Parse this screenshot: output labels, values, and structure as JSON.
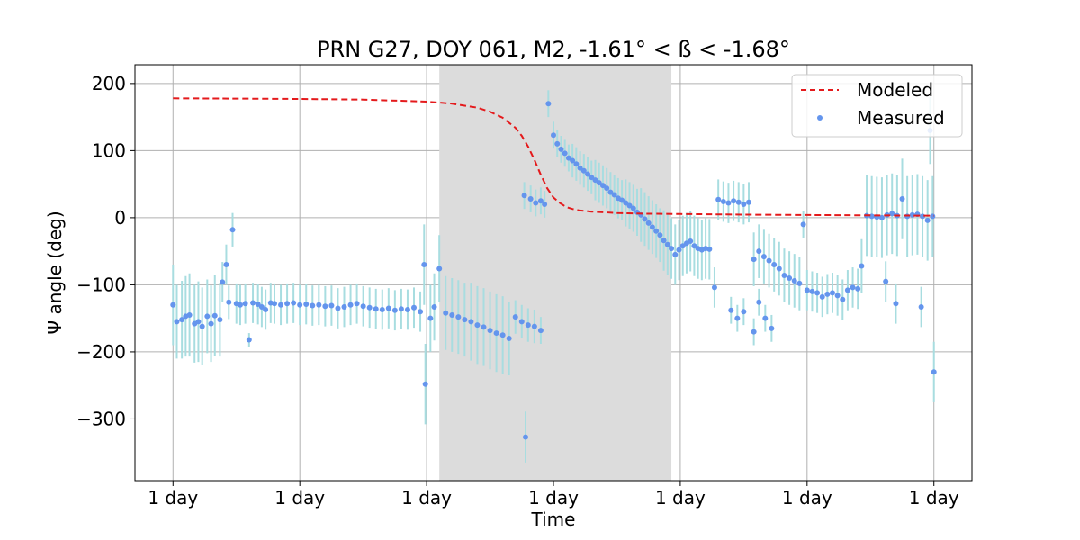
{
  "chart_data": {
    "type": "scatter",
    "title": "PRN G27, DOY 061, M2, -1.61° < ß < -1.68°",
    "xlabel": "Time",
    "ylabel": "Ψ angle (deg)",
    "x_tick_labels": [
      "1 day",
      "1 day",
      "1 day",
      "1 day",
      "1 day",
      "1 day",
      "1 day"
    ],
    "x_ticks": [
      0,
      1,
      2,
      3,
      4,
      5,
      6
    ],
    "xlim": [
      -0.3,
      6.3
    ],
    "y_ticks": [
      200,
      100,
      0,
      -100,
      -200,
      -300
    ],
    "y_tick_labels": [
      "200",
      "100",
      "0",
      "−100",
      "−200",
      "−300"
    ],
    "ylim": [
      -392,
      228
    ],
    "grid": true,
    "legend_position": "top-right",
    "shaded_region": [
      2.1,
      3.93
    ],
    "colors": {
      "modeled": "#e41a1c",
      "measured": "#6495ed",
      "error_bars": "#a8dde0",
      "shade": "#dcdcdc",
      "grid": "#b0b0b0"
    },
    "series": [
      {
        "name": "Modeled",
        "kind": "line",
        "style": "dashed",
        "x": [
          0.0,
          0.5,
          1.0,
          1.5,
          2.0,
          2.2,
          2.4,
          2.5,
          2.6,
          2.7,
          2.75,
          2.8,
          2.85,
          2.9,
          2.95,
          3.0,
          3.05,
          3.1,
          3.15,
          3.2,
          3.3,
          3.4,
          3.5,
          3.7,
          4.0,
          4.5,
          5.0,
          5.5,
          6.0
        ],
        "y": [
          178,
          177.5,
          177,
          176,
          173,
          170,
          164,
          158,
          149,
          134,
          122,
          106,
          86,
          64,
          44,
          30,
          22,
          16,
          13,
          11,
          9,
          8,
          7,
          6,
          5.5,
          4.5,
          4,
          3.5,
          3
        ]
      },
      {
        "name": "Measured",
        "kind": "scatter_errorbar",
        "points": [
          [
            0.0,
            -130,
            60
          ],
          [
            0.03,
            -155,
            55
          ],
          [
            0.07,
            -152,
            58
          ],
          [
            0.1,
            -147,
            60
          ],
          [
            0.13,
            -145,
            62
          ],
          [
            0.17,
            -158,
            58
          ],
          [
            0.2,
            -155,
            60
          ],
          [
            0.23,
            -162,
            58
          ],
          [
            0.27,
            -147,
            55
          ],
          [
            0.3,
            -158,
            57
          ],
          [
            0.33,
            -146,
            60
          ],
          [
            0.37,
            -152,
            55
          ],
          [
            0.39,
            -96,
            30
          ],
          [
            0.42,
            -70,
            30
          ],
          [
            0.44,
            -126,
            25
          ],
          [
            0.47,
            -18,
            25
          ],
          [
            0.5,
            -128,
            30
          ],
          [
            0.53,
            -130,
            30
          ],
          [
            0.57,
            -128,
            30
          ],
          [
            0.6,
            -182,
            10
          ],
          [
            0.63,
            -127,
            30
          ],
          [
            0.67,
            -129,
            30
          ],
          [
            0.7,
            -133,
            30
          ],
          [
            0.73,
            -137,
            30
          ],
          [
            0.77,
            -127,
            30
          ],
          [
            0.8,
            -128,
            30
          ],
          [
            0.85,
            -130,
            30
          ],
          [
            0.9,
            -128,
            30
          ],
          [
            0.95,
            -127,
            30
          ],
          [
            1.0,
            -130,
            30
          ],
          [
            1.05,
            -129,
            30
          ],
          [
            1.1,
            -131,
            30
          ],
          [
            1.15,
            -130,
            30
          ],
          [
            1.2,
            -132,
            30
          ],
          [
            1.25,
            -131,
            30
          ],
          [
            1.3,
            -135,
            30
          ],
          [
            1.35,
            -133,
            30
          ],
          [
            1.4,
            -130,
            30
          ],
          [
            1.45,
            -128,
            30
          ],
          [
            1.5,
            -132,
            30
          ],
          [
            1.55,
            -134,
            30
          ],
          [
            1.6,
            -136,
            30
          ],
          [
            1.65,
            -137,
            30
          ],
          [
            1.7,
            -135,
            30
          ],
          [
            1.75,
            -138,
            30
          ],
          [
            1.8,
            -136,
            30
          ],
          [
            1.85,
            -137,
            30
          ],
          [
            1.9,
            -134,
            30
          ],
          [
            1.95,
            -140,
            30
          ],
          [
            1.98,
            -70,
            60
          ],
          [
            1.99,
            -248,
            60
          ],
          [
            2.03,
            -150,
            50
          ],
          [
            2.06,
            -133,
            50
          ],
          [
            2.1,
            -76,
            50
          ],
          [
            2.15,
            -142,
            55
          ],
          [
            2.2,
            -145,
            55
          ],
          [
            2.25,
            -148,
            55
          ],
          [
            2.3,
            -152,
            55
          ],
          [
            2.35,
            -155,
            58
          ],
          [
            2.4,
            -160,
            58
          ],
          [
            2.45,
            -163,
            58
          ],
          [
            2.5,
            -168,
            58
          ],
          [
            2.55,
            -172,
            58
          ],
          [
            2.6,
            -175,
            58
          ],
          [
            2.65,
            -180,
            55
          ],
          [
            2.7,
            -148,
            25
          ],
          [
            2.75,
            -155,
            25
          ],
          [
            2.8,
            -160,
            25
          ],
          [
            2.85,
            -162,
            25
          ],
          [
            2.9,
            -168,
            20
          ],
          [
            2.78,
            -327,
            38
          ],
          [
            2.77,
            33,
            20
          ],
          [
            2.82,
            28,
            20
          ],
          [
            2.86,
            22,
            20
          ],
          [
            2.9,
            25,
            20
          ],
          [
            2.93,
            20,
            20
          ],
          [
            2.96,
            170,
            20
          ],
          [
            3.0,
            123,
            20
          ],
          [
            3.03,
            110,
            20
          ],
          [
            3.06,
            102,
            20
          ],
          [
            3.09,
            96,
            20
          ],
          [
            3.12,
            89,
            20
          ],
          [
            3.15,
            85,
            25
          ],
          [
            3.18,
            80,
            25
          ],
          [
            3.21,
            74,
            25
          ],
          [
            3.24,
            70,
            25
          ],
          [
            3.27,
            65,
            25
          ],
          [
            3.3,
            60,
            25
          ],
          [
            3.33,
            56,
            30
          ],
          [
            3.36,
            52,
            30
          ],
          [
            3.39,
            48,
            30
          ],
          [
            3.42,
            44,
            30
          ],
          [
            3.45,
            38,
            30
          ],
          [
            3.48,
            34,
            30
          ],
          [
            3.51,
            29,
            30
          ],
          [
            3.54,
            26,
            30
          ],
          [
            3.57,
            22,
            35
          ],
          [
            3.6,
            18,
            35
          ],
          [
            3.63,
            14,
            35
          ],
          [
            3.66,
            8,
            35
          ],
          [
            3.69,
            4,
            40
          ],
          [
            3.72,
            -2,
            40
          ],
          [
            3.75,
            -8,
            40
          ],
          [
            3.78,
            -14,
            40
          ],
          [
            3.81,
            -20,
            40
          ],
          [
            3.84,
            -26,
            40
          ],
          [
            3.87,
            -34,
            45
          ],
          [
            3.9,
            -40,
            45
          ],
          [
            3.93,
            -46,
            45
          ],
          [
            3.96,
            -55,
            45
          ],
          [
            3.99,
            -48,
            45
          ],
          [
            4.02,
            -42,
            45
          ],
          [
            4.05,
            -38,
            45
          ],
          [
            4.08,
            -35,
            45
          ],
          [
            4.11,
            -42,
            45
          ],
          [
            4.14,
            -46,
            45
          ],
          [
            4.17,
            -48,
            45
          ],
          [
            4.2,
            -46,
            45
          ],
          [
            4.23,
            -47,
            45
          ],
          [
            4.27,
            -104,
            30
          ],
          [
            4.3,
            27,
            30
          ],
          [
            4.34,
            24,
            30
          ],
          [
            4.38,
            22,
            30
          ],
          [
            4.42,
            25,
            30
          ],
          [
            4.46,
            23,
            30
          ],
          [
            4.5,
            20,
            30
          ],
          [
            4.54,
            23,
            30
          ],
          [
            4.58,
            -62,
            40
          ],
          [
            4.62,
            -50,
            40
          ],
          [
            4.66,
            -58,
            40
          ],
          [
            4.7,
            -64,
            40
          ],
          [
            4.74,
            -70,
            40
          ],
          [
            4.78,
            -76,
            40
          ],
          [
            4.82,
            -86,
            40
          ],
          [
            4.86,
            -90,
            40
          ],
          [
            4.9,
            -94,
            40
          ],
          [
            4.94,
            -98,
            40
          ],
          [
            4.97,
            -10,
            20
          ],
          [
            5.0,
            -108,
            30
          ],
          [
            5.04,
            -110,
            30
          ],
          [
            5.08,
            -112,
            30
          ],
          [
            5.12,
            -118,
            30
          ],
          [
            5.16,
            -114,
            30
          ],
          [
            5.2,
            -112,
            30
          ],
          [
            5.24,
            -116,
            30
          ],
          [
            5.28,
            -122,
            30
          ],
          [
            5.32,
            -108,
            30
          ],
          [
            5.36,
            -104,
            30
          ],
          [
            5.4,
            -106,
            30
          ],
          [
            4.4,
            -138,
            20
          ],
          [
            4.45,
            -150,
            20
          ],
          [
            4.5,
            -140,
            20
          ],
          [
            4.58,
            -170,
            20
          ],
          [
            4.62,
            -126,
            20
          ],
          [
            4.67,
            -150,
            20
          ],
          [
            4.72,
            -165,
            20
          ],
          [
            5.43,
            -72,
            40
          ],
          [
            5.47,
            3,
            60
          ],
          [
            5.51,
            2,
            60
          ],
          [
            5.55,
            1,
            60
          ],
          [
            5.59,
            0,
            60
          ],
          [
            5.63,
            4,
            60
          ],
          [
            5.67,
            6,
            60
          ],
          [
            5.71,
            3,
            60
          ],
          [
            5.75,
            28,
            60
          ],
          [
            5.79,
            2,
            60
          ],
          [
            5.83,
            4,
            60
          ],
          [
            5.87,
            5,
            60
          ],
          [
            5.91,
            2,
            60
          ],
          [
            5.95,
            -4,
            60
          ],
          [
            5.99,
            2,
            60
          ],
          [
            5.62,
            -95,
            30
          ],
          [
            5.7,
            -128,
            30
          ],
          [
            5.9,
            -133,
            30
          ],
          [
            5.97,
            130,
            50
          ],
          [
            6.0,
            -230,
            45
          ]
        ]
      }
    ]
  }
}
